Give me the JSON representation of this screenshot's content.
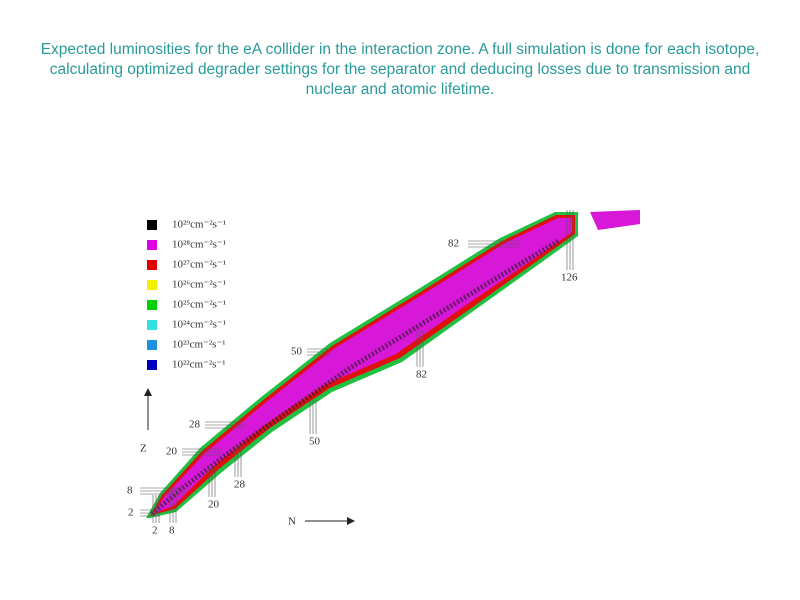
{
  "caption": "Expected luminosities for the eA collider in the interaction zone. A full simulation is done for each isotope, calculating optimized degrader settings for the separator and deducing losses due to transmission and nuclear and atomic lifetime.",
  "legend": [
    {
      "label": "10²⁹cm⁻²s⁻¹",
      "color": "#000000"
    },
    {
      "label": "10²⁸cm⁻²s⁻¹",
      "color": "#e000e0"
    },
    {
      "label": "10²⁷cm⁻²s⁻¹",
      "color": "#e00000"
    },
    {
      "label": "10²⁶cm⁻²s⁻¹",
      "color": "#f0f000"
    },
    {
      "label": "10²⁵cm⁻²s⁻¹",
      "color": "#00d000"
    },
    {
      "label": "10²⁴cm⁻²s⁻¹",
      "color": "#30e0e0"
    },
    {
      "label": "10²³cm⁻²s⁻¹",
      "color": "#2090e0"
    },
    {
      "label": "10²²cm⁻²s⁻¹",
      "color": "#0000c0"
    }
  ],
  "axes": {
    "z": "Z",
    "n": "N"
  },
  "proton_magic": [
    "2",
    "8",
    "20",
    "28",
    "50",
    "82"
  ],
  "neutron_magic": [
    "2",
    "8",
    "20",
    "28",
    "50",
    "82",
    "126"
  ]
}
